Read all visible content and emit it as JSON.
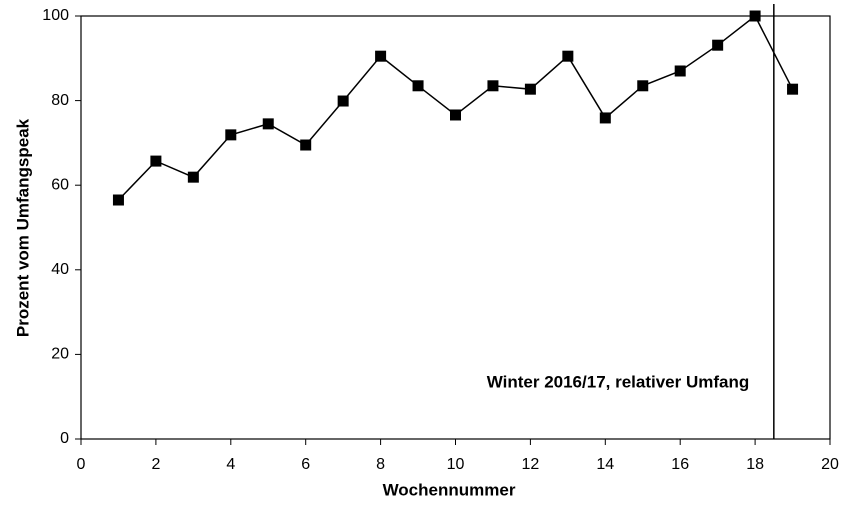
{
  "chart_data": {
    "type": "line",
    "xlabel": "Wochennummer",
    "ylabel": "Prozent vom Umfangspeak",
    "annotation": "Winter 2016/17, relativer Umfang",
    "x": [
      1,
      2,
      3,
      4,
      5,
      6,
      7,
      8,
      9,
      10,
      11,
      12,
      13,
      14,
      15,
      16,
      17,
      18,
      19
    ],
    "series": [
      {
        "color": "#000000",
        "values": [
          56.5,
          65.7,
          61.9,
          71.9,
          74.5,
          69.5,
          79.9,
          90.5,
          83.5,
          76.6,
          83.5,
          82.7,
          90.5,
          75.9,
          83.5,
          87.0,
          93.1,
          100,
          82.7
        ]
      }
    ],
    "vline": 18.5,
    "xlim": [
      0,
      20
    ],
    "xticks": [
      0,
      2,
      4,
      6,
      8,
      10,
      12,
      14,
      16,
      18,
      20
    ],
    "ylim": [
      0,
      100
    ],
    "yticks": [
      0,
      20,
      40,
      60,
      80,
      100
    ],
    "grid": false
  }
}
